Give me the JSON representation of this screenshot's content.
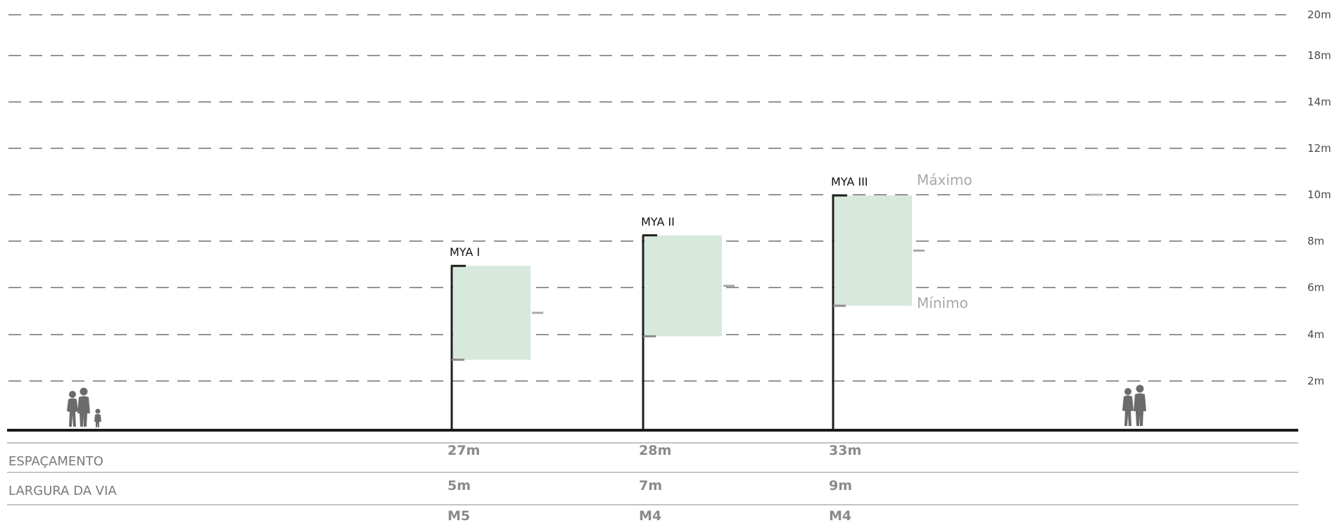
{
  "height_levels": [
    "20m",
    "18m",
    "14m",
    "12m",
    "10m",
    "8m",
    "6m",
    "4m",
    "2m"
  ],
  "poles": [
    {
      "name": "MYA I",
      "height_m": 7,
      "zone_min_m": 3,
      "zone_max_m": 7,
      "spacing": "27m",
      "road_width": "5m",
      "class": "M5"
    },
    {
      "name": "MYA II",
      "height_m": 8.3,
      "zone_min_m": 4,
      "zone_max_m": 8.3,
      "spacing": "28m",
      "road_width": "7m",
      "class": "M4"
    },
    {
      "name": "MYA III",
      "height_m": 10,
      "zone_min_m": 5.3,
      "zone_max_m": 10,
      "spacing": "33m",
      "road_width": "9m",
      "class": "M4"
    }
  ],
  "legend": {
    "max_label": "Máximo",
    "min_label": "Mínimo"
  },
  "rows": {
    "spacing_label": "ESPAÇAMENTO",
    "road_width_label": "LARGURA DA VIA"
  },
  "colors": {
    "zone": "#d7e9dd",
    "pole": "#1f1f1f",
    "dash": "#555555",
    "ground": "#1a1a1a",
    "figure": "#6b6b6b"
  },
  "icons": [
    "family-silhouette-icon",
    "couple-silhouette-icon"
  ]
}
